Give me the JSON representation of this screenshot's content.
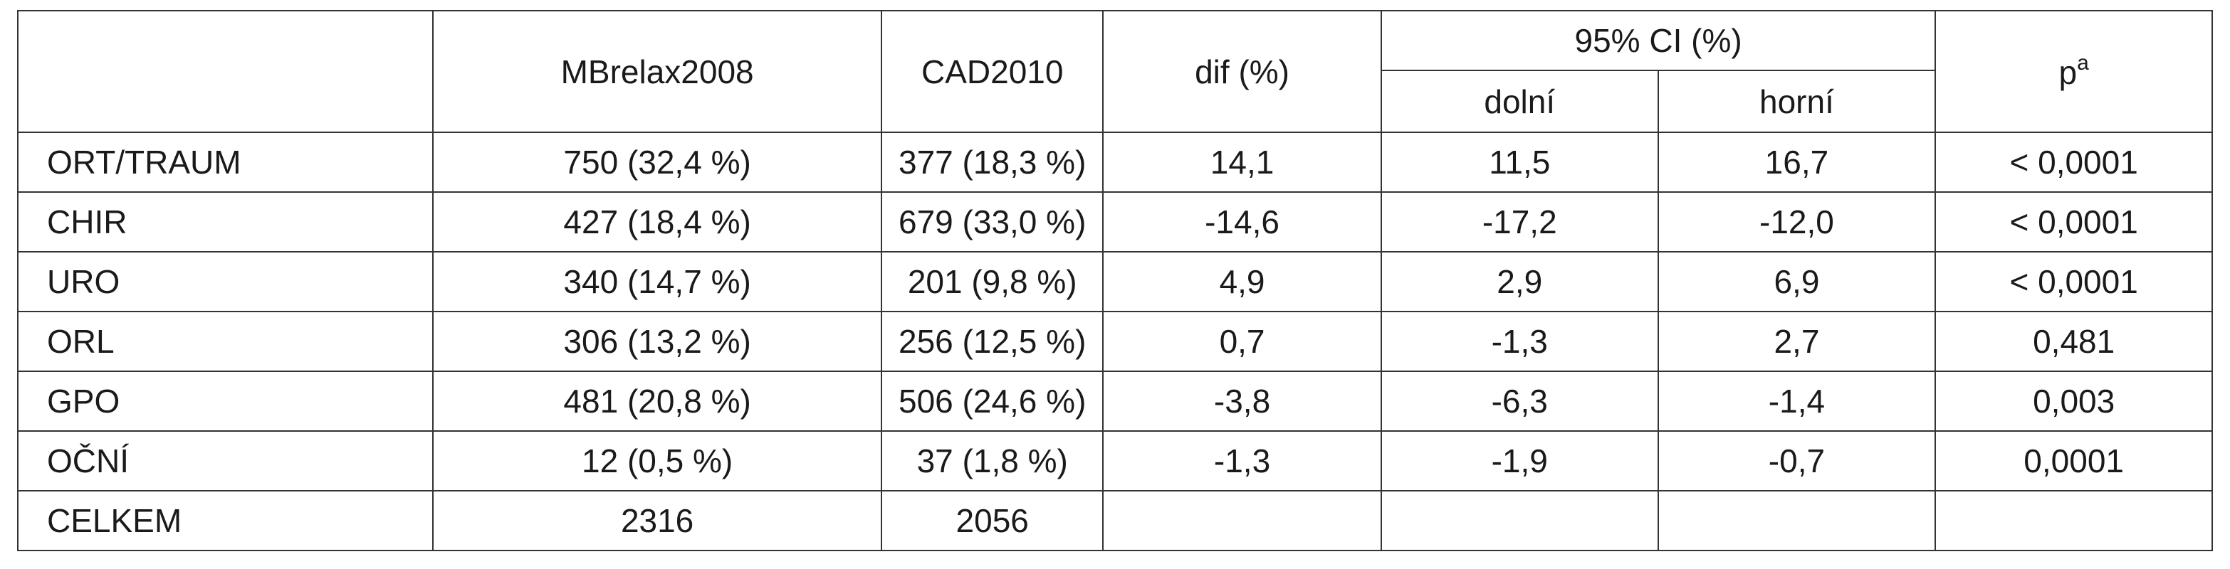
{
  "table": {
    "headers": {
      "empty": "",
      "col1": "MBrelax2008",
      "col2": "CAD2010",
      "col3": "dif (%)",
      "ci_group": "95% CI (%)",
      "ci_lower": "dolní",
      "ci_upper": "horní",
      "p_base": "p",
      "p_sup": "a"
    },
    "rows": [
      {
        "label": "ORT/TRAUM",
        "mbrelax": "750 (32,4 %)",
        "cad": "377 (18,3 %)",
        "dif": "14,1",
        "lower": "11,5",
        "upper": "16,7",
        "p": "< 0,0001"
      },
      {
        "label": "CHIR",
        "mbrelax": "427 (18,4 %)",
        "cad": "679 (33,0 %)",
        "dif": "-14,6",
        "lower": "-17,2",
        "upper": "-12,0",
        "p": "< 0,0001"
      },
      {
        "label": "URO",
        "mbrelax": "340 (14,7 %)",
        "cad": "201 (9,8 %)",
        "dif": "4,9",
        "lower": "2,9",
        "upper": "6,9",
        "p": "< 0,0001"
      },
      {
        "label": "ORL",
        "mbrelax": "306 (13,2 %)",
        "cad": "256 (12,5 %)",
        "dif": "0,7",
        "lower": "-1,3",
        "upper": "2,7",
        "p": "0,481"
      },
      {
        "label": "GPO",
        "mbrelax": "481 (20,8 %)",
        "cad": "506 (24,6 %)",
        "dif": "-3,8",
        "lower": "-6,3",
        "upper": "-1,4",
        "p": "0,003"
      },
      {
        "label": "OČNÍ",
        "mbrelax": "12 (0,5 %)",
        "cad": "37 (1,8 %)",
        "dif": "-1,3",
        "lower": "-1,9",
        "upper": "-0,7",
        "p": "0,0001"
      },
      {
        "label": "CELKEM",
        "mbrelax": "2316",
        "cad": "2056",
        "dif": "",
        "lower": "",
        "upper": "",
        "p": ""
      }
    ]
  }
}
